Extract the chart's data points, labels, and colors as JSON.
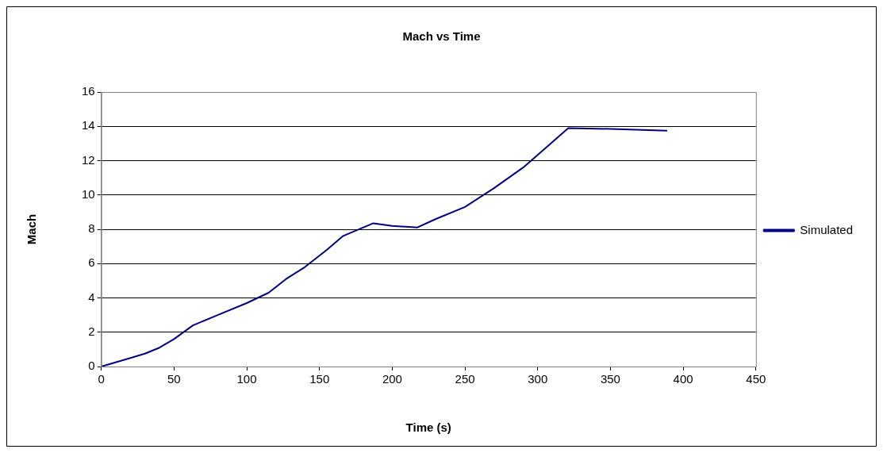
{
  "chart_data": {
    "type": "line",
    "title": "Mach vs Time",
    "xlabel": "Time (s)",
    "ylabel": "Mach",
    "xlim": [
      0,
      450
    ],
    "xticks": [
      0,
      50,
      100,
      150,
      200,
      250,
      300,
      350,
      400,
      450
    ],
    "ylim": [
      0,
      16
    ],
    "yticks": [
      0,
      2,
      4,
      6,
      8,
      10,
      12,
      14,
      16
    ],
    "grid": "y",
    "legend": "right",
    "marker": "none",
    "line_style": "solid",
    "series": [
      {
        "name": "Simulated",
        "color": "#000080",
        "x": [
          0,
          20,
          30,
          40,
          50,
          63,
          80,
          100,
          115,
          127,
          140,
          155,
          166,
          187,
          200,
          217,
          230,
          250,
          270,
          290,
          305,
          321,
          350,
          389
        ],
        "values": [
          0,
          0.5,
          0.75,
          1.1,
          1.6,
          2.4,
          3.0,
          3.7,
          4.3,
          5.1,
          5.8,
          6.8,
          7.6,
          8.35,
          8.2,
          8.1,
          8.6,
          9.3,
          10.4,
          11.6,
          12.7,
          13.9,
          13.85,
          13.75
        ]
      }
    ]
  }
}
